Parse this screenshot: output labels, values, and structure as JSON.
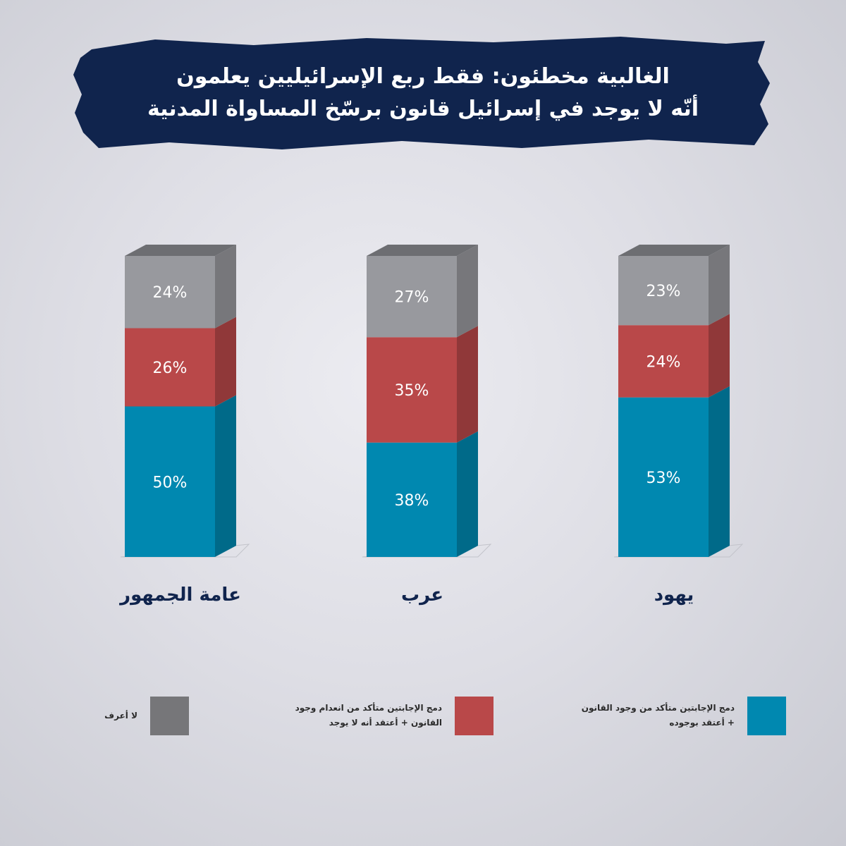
{
  "title": {
    "line1": "الغالبية مخطئون: فقط ربع الإسرائيليين يعلمون",
    "line2": "أنّه لا يوجد في إسرائيل قانون برسّخ المساواة المدنية"
  },
  "colors": {
    "banner": "#10244d",
    "blue": "#0088b0",
    "red": "#b94849",
    "gray": "#98999e",
    "legend_gray": "#767679",
    "category_text": "#10244d"
  },
  "chart_data": {
    "type": "bar",
    "stacked": true,
    "categories": [
      "عامة الجمهور",
      "عرب",
      "يهود"
    ],
    "series": [
      {
        "name": "دمج الإجابتين متأكد من وجود القانون + أعتقد بوجوده",
        "values": [
          50,
          38,
          53
        ],
        "labels": [
          "50%",
          "38%",
          "53%"
        ],
        "color": "#0088b0"
      },
      {
        "name": "دمج الإجابتين متأكد من انعدام وجود القانون + أعتقد أنه لا يوجد",
        "values": [
          26,
          35,
          24
        ],
        "labels": [
          "26%",
          "35%",
          "24%"
        ],
        "color": "#b94849"
      },
      {
        "name": "لا أعرف",
        "values": [
          24,
          27,
          23
        ],
        "labels": [
          "24%",
          "27%",
          "23%"
        ],
        "color": "#98999e"
      }
    ],
    "ylim": [
      0,
      100
    ],
    "grid": false
  },
  "legend": [
    {
      "line1": "دمج الإجابتين متأكد من وجود القانون",
      "line2": "+ أعتقد بوجوده",
      "color": "#0088b0"
    },
    {
      "line1": "دمج الإجابتين متأكد من انعدام وجود",
      "line2": "القانون + أعتقد أنه لا يوجد",
      "color": "#b94849"
    },
    {
      "line1": "لا أعرف",
      "line2": "",
      "color": "#767679"
    }
  ]
}
